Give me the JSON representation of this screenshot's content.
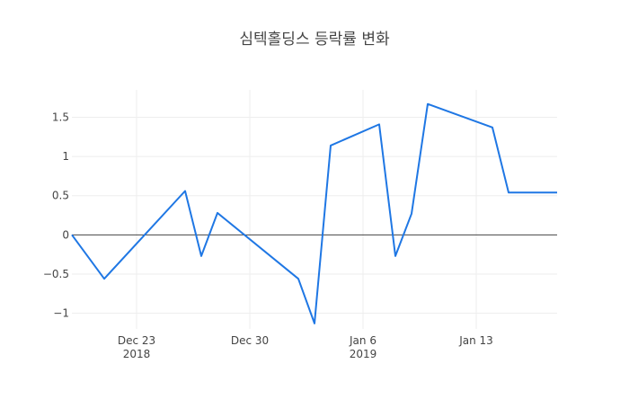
{
  "chart_data": {
    "type": "line",
    "title": "심텍홀딩스 등락률 변화",
    "xlabel": "",
    "ylabel": "",
    "x_axis_type": "date",
    "xlim": [
      "2018-12-19",
      "2019-01-18"
    ],
    "ylim": [
      -1.2,
      1.85
    ],
    "x_ticks": [
      {
        "date": "2018-12-23",
        "label": "Dec 23",
        "sublabel": "2018"
      },
      {
        "date": "2018-12-30",
        "label": "Dec 30",
        "sublabel": ""
      },
      {
        "date": "2019-01-06",
        "label": "Jan 6",
        "sublabel": "2019"
      },
      {
        "date": "2019-01-13",
        "label": "Jan 13",
        "sublabel": ""
      }
    ],
    "y_ticks": [
      {
        "value": 1.5,
        "label": "1.5"
      },
      {
        "value": 1,
        "label": "1"
      },
      {
        "value": 0.5,
        "label": "0.5"
      },
      {
        "value": 0,
        "label": "0"
      },
      {
        "value": -0.5,
        "label": "−0.5"
      },
      {
        "value": -1,
        "label": "−1"
      }
    ],
    "grid": true,
    "series": [
      {
        "color": "#1f77e4",
        "points": [
          {
            "x": "2018-12-19",
            "y": 0
          },
          {
            "x": "2018-12-21",
            "y": -0.56
          },
          {
            "x": "2018-12-26",
            "y": 0.56
          },
          {
            "x": "2018-12-27",
            "y": -0.27
          },
          {
            "x": "2018-12-28",
            "y": 0.28
          },
          {
            "x": "2019-01-02",
            "y": -0.56
          },
          {
            "x": "2019-01-03",
            "y": -1.13
          },
          {
            "x": "2019-01-04",
            "y": 1.14
          },
          {
            "x": "2019-01-07",
            "y": 1.41
          },
          {
            "x": "2019-01-08",
            "y": -0.27
          },
          {
            "x": "2019-01-09",
            "y": 0.27
          },
          {
            "x": "2019-01-10",
            "y": 1.67
          },
          {
            "x": "2019-01-14",
            "y": 1.37
          },
          {
            "x": "2019-01-15",
            "y": 0.54
          },
          {
            "x": "2019-01-18",
            "y": 0.54
          }
        ]
      }
    ]
  }
}
